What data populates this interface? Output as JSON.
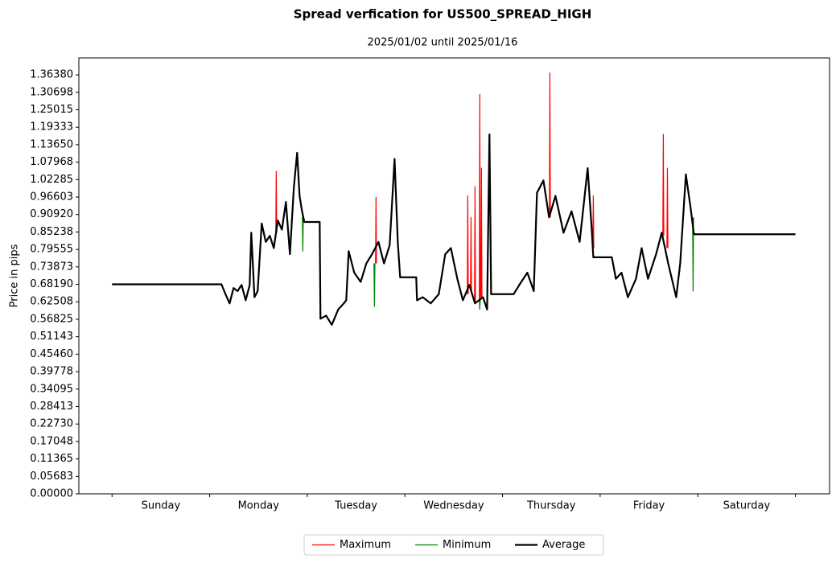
{
  "chart_data": {
    "type": "line",
    "title": "Spread verfication for US500_SPREAD_HIGH",
    "subtitle": "2025/01/02 until 2025/01/16",
    "y_label": "Price in pips",
    "categories": [
      "Sunday",
      "Monday",
      "Tuesday",
      "Wednesday",
      "Thursday",
      "Friday",
      "Saturday"
    ],
    "xlim": [
      -0.34,
      7.35
    ],
    "ylim": [
      0,
      1.419
    ],
    "yticks": [
      {
        "value": 0,
        "label": "0.00000"
      },
      {
        "value": 0.05683,
        "label": "0.05683"
      },
      {
        "value": 0.11365,
        "label": "0.11365"
      },
      {
        "value": 0.17048,
        "label": "0.17048"
      },
      {
        "value": 0.2273,
        "label": "0.22730"
      },
      {
        "value": 0.28413,
        "label": "0.28413"
      },
      {
        "value": 0.34095,
        "label": "0.34095"
      },
      {
        "value": 0.39778,
        "label": "0.39778"
      },
      {
        "value": 0.4546,
        "label": "0.45460"
      },
      {
        "value": 0.51143,
        "label": "0.51143"
      },
      {
        "value": 0.56825,
        "label": "0.56825"
      },
      {
        "value": 0.62508,
        "label": "0.62508"
      },
      {
        "value": 0.6819,
        "label": "0.68190"
      },
      {
        "value": 0.73873,
        "label": "0.73873"
      },
      {
        "value": 0.79555,
        "label": "0.79555"
      },
      {
        "value": 0.85238,
        "label": "0.85238"
      },
      {
        "value": 0.9092,
        "label": "0.90920"
      },
      {
        "value": 0.96603,
        "label": "0.96603"
      },
      {
        "value": 1.02285,
        "label": "1.02285"
      },
      {
        "value": 1.07968,
        "label": "1.07968"
      },
      {
        "value": 1.1365,
        "label": "1.13650"
      },
      {
        "value": 1.19333,
        "label": "1.19333"
      },
      {
        "value": 1.25015,
        "label": "1.25015"
      },
      {
        "value": 1.30698,
        "label": "1.30698"
      },
      {
        "value": 1.3638,
        "label": "1.36380"
      }
    ],
    "legend": "lower center",
    "series": [
      {
        "name": "Maximum",
        "color": "#ff0000",
        "width": 1.2,
        "x": [
          1.677,
          1.682,
          1.687,
          null,
          2.699,
          2.704,
          2.709,
          null,
          3.639,
          3.644,
          3.649,
          null,
          3.672,
          3.677,
          3.682,
          null,
          3.713,
          3.718,
          3.723,
          null,
          3.762,
          3.767,
          3.772,
          null,
          3.779,
          3.784,
          3.789,
          null,
          4.48,
          4.485,
          4.49,
          null,
          4.925,
          4.93,
          4.935,
          null,
          5.642,
          5.647,
          5.652,
          null,
          5.684,
          5.689,
          5.694
        ],
        "values": [
          0.85,
          1.05,
          0.85,
          null,
          0.75,
          0.965,
          0.75,
          null,
          0.65,
          0.97,
          0.65,
          null,
          0.66,
          0.9,
          0.66,
          null,
          0.62,
          1.0,
          0.62,
          null,
          0.64,
          1.3,
          0.64,
          null,
          0.64,
          1.06,
          0.64,
          null,
          0.9,
          1.37,
          0.9,
          null,
          0.8,
          0.97,
          0.8,
          null,
          0.84,
          1.17,
          0.84,
          null,
          0.8,
          1.06,
          0.8
        ]
      },
      {
        "name": "Minimum",
        "color": "#008000",
        "width": 1.2,
        "x": [
          1.949,
          1.954,
          1.959,
          null,
          2.683,
          2.688,
          2.693,
          null,
          3.762,
          3.767,
          3.772,
          null,
          5.947,
          5.952,
          5.957
        ],
        "values": [
          0.9,
          0.79,
          0.9,
          null,
          0.75,
          0.61,
          0.75,
          null,
          0.64,
          0.6,
          0.64,
          null,
          0.9,
          0.66,
          0.9
        ]
      },
      {
        "name": "Average",
        "color": "#000000",
        "width": 2.2,
        "x": [
          0,
          1.121,
          1.162,
          1.204,
          1.245,
          1.286,
          1.327,
          1.369,
          1.41,
          1.426,
          1.459,
          1.492,
          1.533,
          1.575,
          1.616,
          1.657,
          1.698,
          1.74,
          1.781,
          1.822,
          1.863,
          1.896,
          1.921,
          1.946,
          1.97,
          2.127,
          2.135,
          2.193,
          2.251,
          2.317,
          2.374,
          2.399,
          2.424,
          2.481,
          2.547,
          2.605,
          2.663,
          2.729,
          2.786,
          2.844,
          2.894,
          2.927,
          2.951,
          3.116,
          3.124,
          3.182,
          3.265,
          3.347,
          3.413,
          3.471,
          3.537,
          3.594,
          3.66,
          3.718,
          3.8,
          3.842,
          3.866,
          3.883,
          4.114,
          4.172,
          4.254,
          4.32,
          4.353,
          4.419,
          4.477,
          4.542,
          4.625,
          4.707,
          4.79,
          4.872,
          4.914,
          4.93,
          5.12,
          5.161,
          5.219,
          5.284,
          5.367,
          5.425,
          5.49,
          5.573,
          5.631,
          5.697,
          5.779,
          5.82,
          5.878,
          5.927,
          5.96,
          7.0
        ],
        "values": [
          0.682,
          0.682,
          0.65,
          0.62,
          0.67,
          0.66,
          0.68,
          0.63,
          0.68,
          0.85,
          0.64,
          0.66,
          0.88,
          0.82,
          0.84,
          0.8,
          0.89,
          0.86,
          0.95,
          0.78,
          1.0,
          1.11,
          0.97,
          0.92,
          0.885,
          0.885,
          0.57,
          0.58,
          0.55,
          0.6,
          0.62,
          0.63,
          0.79,
          0.72,
          0.69,
          0.75,
          0.78,
          0.82,
          0.75,
          0.81,
          1.09,
          0.82,
          0.705,
          0.705,
          0.63,
          0.64,
          0.62,
          0.65,
          0.78,
          0.8,
          0.7,
          0.63,
          0.68,
          0.62,
          0.64,
          0.6,
          1.17,
          0.65,
          0.65,
          0.68,
          0.72,
          0.66,
          0.98,
          1.02,
          0.9,
          0.97,
          0.85,
          0.92,
          0.82,
          1.06,
          0.86,
          0.77,
          0.77,
          0.7,
          0.72,
          0.64,
          0.7,
          0.8,
          0.7,
          0.78,
          0.85,
          0.75,
          0.64,
          0.75,
          1.04,
          0.93,
          0.845,
          0.845
        ]
      }
    ]
  }
}
